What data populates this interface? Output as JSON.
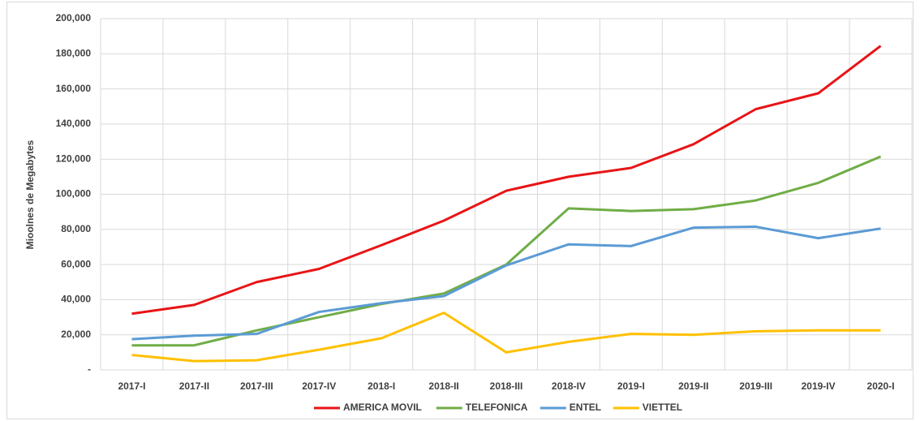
{
  "chart_data": {
    "type": "line",
    "y_label": "Mioolnes de Megabytes",
    "categories": [
      "2017-I",
      "2017-II",
      "2017-III",
      "2017-IV",
      "2018-I",
      "2018-II",
      "2018-III",
      "2018-IV",
      "2019-I",
      "2019-II",
      "2019-III",
      "2019-IV",
      "2020-I"
    ],
    "series": [
      {
        "name": "AMERICA MOVIL",
        "color": "#e81416",
        "values": [
          32000,
          37000,
          50000,
          57500,
          71000,
          85000,
          102000,
          110000,
          115000,
          128500,
          148500,
          157500,
          184500
        ]
      },
      {
        "name": "TELEFONICA",
        "color": "#70ad47",
        "values": [
          14000,
          14000,
          22500,
          30000,
          37500,
          43500,
          60000,
          92000,
          90500,
          91500,
          96500,
          106500,
          121500
        ]
      },
      {
        "name": "ENTEL",
        "color": "#5b9bd5",
        "values": [
          17500,
          19500,
          20500,
          33000,
          38000,
          42000,
          59500,
          71500,
          70500,
          81000,
          81500,
          75000,
          80500
        ]
      },
      {
        "name": "VIETTEL",
        "color": "#ffc000",
        "values": [
          8500,
          5000,
          5500,
          11500,
          18000,
          32500,
          10000,
          16000,
          20500,
          20000,
          22000,
          22500,
          22500
        ]
      }
    ],
    "ylim": [
      0,
      200000
    ],
    "yticks": [
      {
        "value": 0,
        "label": "-"
      },
      {
        "value": 20000,
        "label": "20,000"
      },
      {
        "value": 40000,
        "label": "40,000"
      },
      {
        "value": 60000,
        "label": "60,000"
      },
      {
        "value": 80000,
        "label": "80,000"
      },
      {
        "value": 100000,
        "label": "100,000"
      },
      {
        "value": 120000,
        "label": "120,000"
      },
      {
        "value": 140000,
        "label": "140,000"
      },
      {
        "value": 160000,
        "label": "160,000"
      },
      {
        "value": 180000,
        "label": "180,000"
      },
      {
        "value": 200000,
        "label": "200,000"
      }
    ],
    "grid": true,
    "legend": "bottom"
  }
}
